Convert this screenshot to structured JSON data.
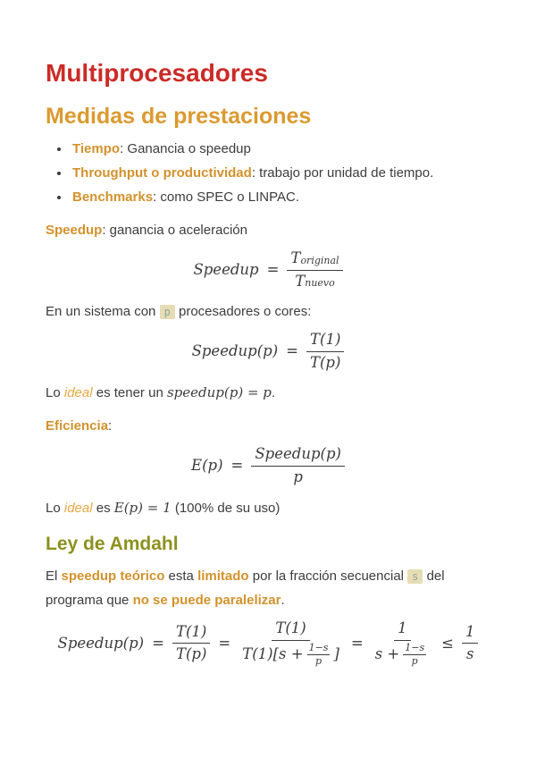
{
  "doc": {
    "h1": "Multiprocesadores",
    "h2": "Medidas de prestaciones",
    "h3": "Ley de Amdahl",
    "bullets": [
      {
        "term": "Tiempo",
        "rest": ": Ganancia o speedup"
      },
      {
        "term": "Throughput o productividad",
        "rest": ": trabajo por unidad de tiempo."
      },
      {
        "term": "Benchmarks",
        "rest": ": como SPEC o LINPAC."
      }
    ],
    "speedup_def": {
      "term": "Speedup",
      "rest": ": ganancia o aceleración"
    },
    "sistema": {
      "pre": "En un sistema con ",
      "code": "p",
      "post": " procesadores o cores:"
    },
    "ideal1": {
      "pre": "Lo ",
      "em": "ideal",
      "mid": " es tener un ",
      "math": "speedup(p) = p",
      "post": "."
    },
    "eficiencia": {
      "term": "Eficiencia",
      "rest": ":"
    },
    "ideal2": {
      "pre": "Lo ",
      "em": "ideal",
      "mid": " es ",
      "math": "E(p) = 1",
      "post": " (100% de su uso)"
    },
    "amdahl": {
      "s1": "El ",
      "b1": "speedup teórico",
      "s2": " esta ",
      "b2": "limitado",
      "s3": " por la fracción secuencial ",
      "code": "s",
      "s4": " del programa que ",
      "b3": "no se puede paralelizar",
      "s5": "."
    }
  },
  "formulas": {
    "f1": {
      "lhs": "Speedup",
      "eq": "=",
      "num_base": "T",
      "num_sub": "original",
      "den_base": "T",
      "den_sub": "nuevo"
    },
    "f2": {
      "lhs": "Speedup(p)",
      "eq": "=",
      "num": "T(1)",
      "den": "T(p)"
    },
    "f3": {
      "lhs": "E(p)",
      "eq": "=",
      "num": "Speedup(p)",
      "den": "p"
    },
    "f4": {
      "t1": "Speedup(p)",
      "eq1": "=",
      "fa": {
        "num": "T(1)",
        "den": "T(p)"
      },
      "eq2": "=",
      "fb": {
        "num": "T(1)",
        "den_pre": "T(1)[s +",
        "inner_num": "1−s",
        "inner_den": "p",
        "den_post": "]"
      },
      "eq3": "=",
      "fc": {
        "num": "1",
        "den_pre": "s +",
        "inner_num": "1−s",
        "inner_den": "p"
      },
      "le": "≤",
      "fd": {
        "num": "1",
        "den": "s"
      }
    }
  },
  "colors": {
    "h1_red": "#cb2b27",
    "h2_orange": "#db9a30",
    "h3_olive": "#8c911f",
    "strong_orange": "#d2922c",
    "em_orange": "#e4a843",
    "body_text": "#3c3c3c",
    "code_bg": "#e6ddb4",
    "code_text": "#95a39e"
  }
}
